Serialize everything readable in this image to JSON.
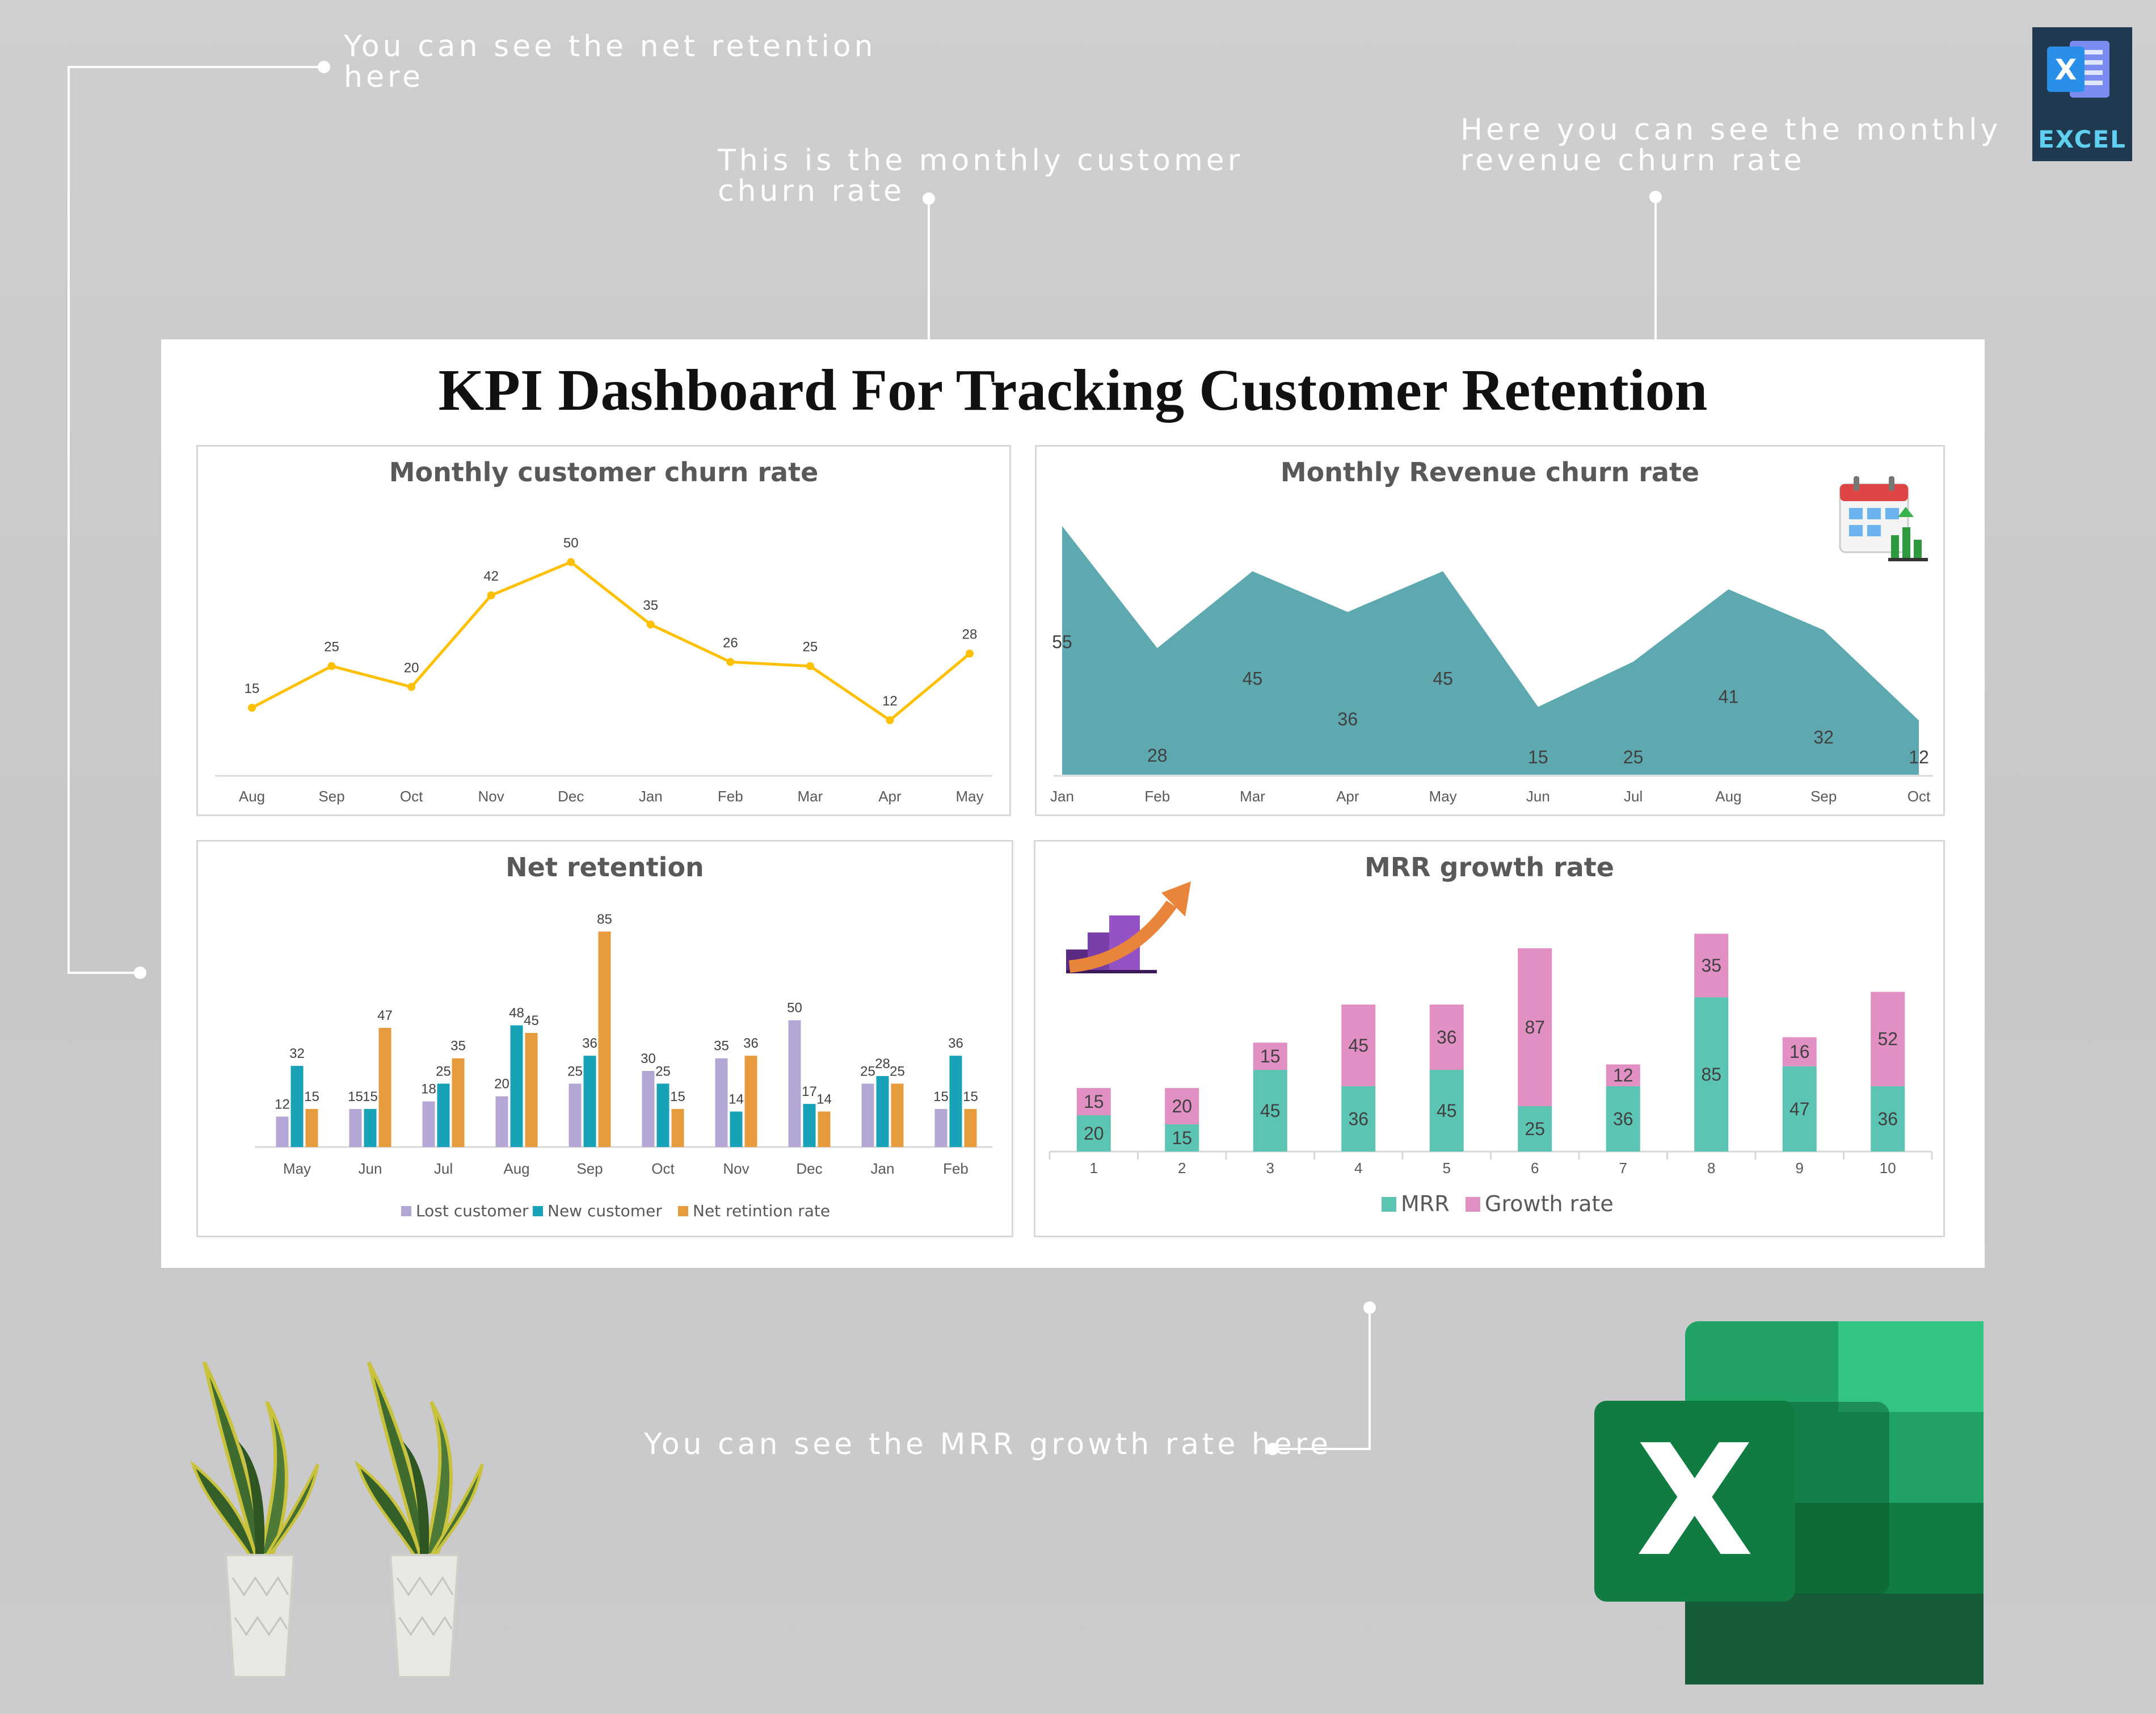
{
  "annotations": {
    "net_retention": [
      "You can see the net retention",
      "here"
    ],
    "monthly_churn": [
      "This is the monthly customer",
      "churn rate"
    ],
    "revenue_churn": [
      "Here you can see the monthly",
      "revenue churn rate"
    ],
    "mrr_growth": "You can see the MRR growth rate here"
  },
  "dashboard": {
    "title": "KPI Dashboard For Tracking Customer Retention"
  },
  "excel_badge": {
    "label": "EXCEL",
    "letter": "X"
  },
  "excel_logo": {
    "letter": "X"
  },
  "colors": {
    "line": "#FFC000",
    "area": "#5EA8B0",
    "lost_customer": "#B4A7D6",
    "new_customer": "#17A2B8",
    "net_retention": "#E69B3C",
    "mrr": "#5BC4B3",
    "growth_rate": "#E28FC4"
  },
  "chart_data": [
    {
      "id": "monthly-customer-churn-rate",
      "type": "line",
      "title": "Monthly customer churn rate",
      "categories": [
        "Aug",
        "Sep",
        "Oct",
        "Nov",
        "Dec",
        "Jan",
        "Feb",
        "Mar",
        "Apr",
        "May"
      ],
      "values": [
        15,
        25,
        20,
        42,
        50,
        35,
        26,
        25,
        12,
        28
      ],
      "ylim": [
        0,
        60
      ],
      "grid": false,
      "legend": "none"
    },
    {
      "id": "monthly-revenue-churn-rate",
      "type": "area",
      "title": "Monthly Revenue churn rate",
      "categories": [
        "Jan",
        "Feb",
        "Mar",
        "Apr",
        "May",
        "Jun",
        "Jul",
        "Aug",
        "Sep",
        "Oct"
      ],
      "values": [
        55,
        28,
        45,
        36,
        45,
        15,
        25,
        41,
        32,
        12
      ],
      "ylim": [
        0,
        60
      ],
      "grid": false,
      "legend": "none"
    },
    {
      "id": "net-retention",
      "type": "bar",
      "title": "Net retention",
      "categories": [
        "May",
        "Jun",
        "Jul",
        "Aug",
        "Sep",
        "Oct",
        "Nov",
        "Dec",
        "Jan",
        "Feb"
      ],
      "series": [
        {
          "name": "Lost customer",
          "values": [
            12,
            15,
            18,
            20,
            25,
            30,
            35,
            50,
            25,
            15
          ]
        },
        {
          "name": "New customer",
          "values": [
            32,
            15,
            25,
            48,
            36,
            25,
            14,
            17,
            28,
            36
          ]
        },
        {
          "name": "Net retintion rate",
          "values": [
            15,
            47,
            35,
            45,
            85,
            15,
            36,
            14,
            25,
            15
          ]
        }
      ],
      "ylim": [
        0,
        90
      ],
      "grid": false,
      "legend": "bottom"
    },
    {
      "id": "mrr-growth-rate",
      "type": "bar",
      "stacked": true,
      "title": "MRR growth rate",
      "categories": [
        "1",
        "2",
        "3",
        "4",
        "5",
        "6",
        "7",
        "8",
        "9",
        "10"
      ],
      "series": [
        {
          "name": "MRR",
          "values": [
            20,
            15,
            45,
            36,
            45,
            25,
            36,
            85,
            47,
            36
          ]
        },
        {
          "name": "Growth rate",
          "values": [
            15,
            20,
            15,
            45,
            36,
            87,
            12,
            35,
            16,
            52
          ]
        }
      ],
      "ylim": [
        0,
        130
      ],
      "grid": false,
      "legend": "bottom"
    }
  ]
}
